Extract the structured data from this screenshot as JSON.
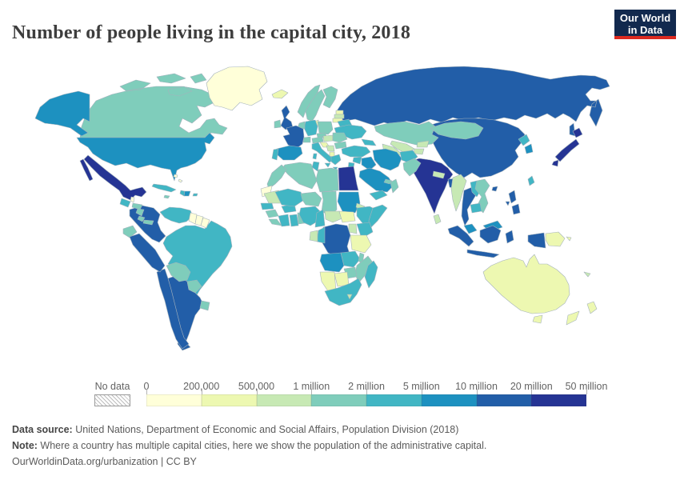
{
  "title": "Number of people living in the capital city, 2018",
  "logo": {
    "line1": "Our World",
    "line2": "in Data",
    "bg_color": "#12294e",
    "accent_color": "#dc2a20"
  },
  "legend": {
    "no_data_label": "No data",
    "tick_labels": [
      "0",
      "200,000",
      "500,000",
      "1 million",
      "2 million",
      "5 million",
      "10 million",
      "20 million",
      "50 million"
    ],
    "colors": [
      "#ffffd9",
      "#edf8b1",
      "#c7e9b4",
      "#7fcdbb",
      "#41b6c4",
      "#1d91c0",
      "#225ea8",
      "#253494"
    ]
  },
  "footer": {
    "source_label": "Data source:",
    "source_text": " United Nations, Department of Economic and Social Affairs, Population Division (2018)",
    "note_label": "Note:",
    "note_text": " Where a country has multiple capital cities, here we show the population of the administrative capital.",
    "license": "OurWorldinData.org/urbanization | CC BY"
  },
  "chart_data": {
    "type": "choropleth_map",
    "title": "Number of people living in the capital city, 2018",
    "year": 2018,
    "unit": "people in capital city",
    "legend_position": "bottom",
    "bins": [
      {
        "index": 0,
        "range": "0 - 200,000",
        "color": "#ffffd9"
      },
      {
        "index": 1,
        "range": "200,000 - 500,000",
        "color": "#edf8b1"
      },
      {
        "index": 2,
        "range": "500,000 - 1 million",
        "color": "#c7e9b4"
      },
      {
        "index": 3,
        "range": "1 million - 2 million",
        "color": "#7fcdbb"
      },
      {
        "index": 4,
        "range": "2 million - 5 million",
        "color": "#41b6c4"
      },
      {
        "index": 5,
        "range": "5 million - 10 million",
        "color": "#1d91c0"
      },
      {
        "index": 6,
        "range": "10 million - 20 million",
        "color": "#225ea8"
      },
      {
        "index": 7,
        "range": "20 million - 50 million",
        "color": "#253494"
      }
    ],
    "countries": [
      [
        "Russia",
        6
      ],
      [
        "Canada",
        3
      ],
      [
        "United States",
        5
      ],
      [
        "Greenland",
        0
      ],
      [
        "Brazil",
        4
      ],
      [
        "China",
        6
      ],
      [
        "Australia",
        1
      ],
      [
        "Kazakhstan",
        3
      ],
      [
        "Uzbekistan",
        2
      ],
      [
        "Turkmenistan",
        2
      ],
      [
        "Kyrgyzstan",
        2
      ],
      [
        "Tajikistan",
        2
      ],
      [
        "India",
        7
      ],
      [
        "Argentina",
        6
      ],
      [
        "Chile",
        6
      ],
      [
        "Mexico",
        7
      ],
      [
        "Iceland",
        1
      ],
      [
        "United Kingdom",
        6
      ],
      [
        "Ireland",
        3
      ],
      [
        "Norway",
        3
      ],
      [
        "Sweden",
        3
      ],
      [
        "Finland",
        3
      ],
      [
        "Denmark",
        1
      ],
      [
        "Estonia",
        1
      ],
      [
        "Latvia",
        2
      ],
      [
        "Lithuania",
        1
      ],
      [
        "Belarus",
        4
      ],
      [
        "Ukraine",
        4
      ],
      [
        "Poland",
        3
      ],
      [
        "Germany",
        4
      ],
      [
        "Netherlands",
        3
      ],
      [
        "France",
        6
      ],
      [
        "Spain",
        5
      ],
      [
        "Portugal",
        4
      ],
      [
        "Italy",
        4
      ],
      [
        "Switzerland",
        3
      ],
      [
        "Czechia",
        3
      ],
      [
        "Austria",
        3
      ],
      [
        "Hungary",
        2
      ],
      [
        "Croatia",
        1
      ],
      [
        "Serbia",
        2
      ],
      [
        "Albania",
        1
      ],
      [
        "Greece",
        4
      ],
      [
        "Romania",
        3
      ],
      [
        "Bulgaria",
        3
      ],
      [
        "Turkey",
        4
      ],
      [
        "Azerbaijan",
        4
      ],
      [
        "Syria",
        4
      ],
      [
        "Jordan",
        4
      ],
      [
        "Iraq",
        5
      ],
      [
        "Iran",
        5
      ],
      [
        "Afghanistan",
        4
      ],
      [
        "Pakistan",
        3
      ],
      [
        "Saudi Arabia",
        5
      ],
      [
        "Yemen",
        4
      ],
      [
        "Oman",
        3
      ],
      [
        "United Arab Emirates",
        3
      ],
      [
        "Egypt",
        7
      ],
      [
        "Libya",
        3
      ],
      [
        "Tunisia",
        4
      ],
      [
        "Algeria",
        3
      ],
      [
        "Morocco",
        3
      ],
      [
        "Western Sahara",
        0
      ],
      [
        "Mauritania",
        2
      ],
      [
        "Senegal",
        4
      ],
      [
        "Guinea",
        3
      ],
      [
        "Sierra Leone",
        3
      ],
      [
        "Ivory Coast",
        4
      ],
      [
        "Ghana",
        4
      ],
      [
        "Togo",
        3
      ],
      [
        "Burkina Faso",
        4
      ],
      [
        "Mali",
        4
      ],
      [
        "Niger",
        3
      ],
      [
        "Nigeria",
        4
      ],
      [
        "Chad",
        3
      ],
      [
        "Cameroon",
        4
      ],
      [
        "Central African Republic",
        2
      ],
      [
        "Sudan",
        5
      ],
      [
        "Eritrea",
        2
      ],
      [
        "South Sudan",
        1
      ],
      [
        "Ethiopia",
        4
      ],
      [
        "Somalia",
        4
      ],
      [
        "Kenya",
        4
      ],
      [
        "Uganda",
        2
      ],
      [
        "Tanzania",
        1
      ],
      [
        "Democratic Republic of Congo",
        6
      ],
      [
        "Congo",
        4
      ],
      [
        "Gabon",
        2
      ],
      [
        "Angola",
        5
      ],
      [
        "Zambia",
        4
      ],
      [
        "Malawi",
        3
      ],
      [
        "Mozambique",
        3
      ],
      [
        "Zimbabwe",
        3
      ],
      [
        "Botswana",
        1
      ],
      [
        "Namibia",
        1
      ],
      [
        "South Africa",
        4
      ],
      [
        "Lesotho",
        2
      ],
      [
        "Madagascar",
        4
      ],
      [
        "Mongolia",
        3
      ],
      [
        "Nepal",
        2
      ],
      [
        "Bangladesh",
        6
      ],
      [
        "Sri Lanka",
        2
      ],
      [
        "Myanmar",
        2
      ],
      [
        "Thailand",
        6
      ],
      [
        "Laos",
        4
      ],
      [
        "Vietnam",
        3
      ],
      [
        "Cambodia",
        4
      ],
      [
        "Malaysia",
        5
      ],
      [
        "North Korea",
        4
      ],
      [
        "South Korea",
        5
      ],
      [
        "Japan",
        7
      ],
      [
        "Taiwan",
        4
      ],
      [
        "Philippines",
        6
      ],
      [
        "Indonesia",
        6
      ],
      [
        "Papua New Guinea",
        1
      ],
      [
        "New Zealand",
        1
      ],
      [
        "New Caledonia",
        2
      ],
      [
        "Colombia",
        6
      ],
      [
        "Venezuela",
        4
      ],
      [
        "Guyana",
        0
      ],
      [
        "Suriname",
        0
      ],
      [
        "French Guiana",
        0
      ],
      [
        "Ecuador",
        3
      ],
      [
        "Peru",
        6
      ],
      [
        "Bolivia",
        3
      ],
      [
        "Paraguay",
        3
      ],
      [
        "Uruguay",
        3
      ],
      [
        "Guatemala",
        4
      ],
      [
        "Belize",
        0
      ],
      [
        "Honduras",
        3
      ],
      [
        "Nicaragua",
        3
      ],
      [
        "Costa Rica",
        3
      ],
      [
        "Panama",
        3
      ],
      [
        "Cuba",
        4
      ],
      [
        "Haiti",
        4
      ],
      [
        "Dominican Republic",
        5
      ],
      [
        "Jamaica",
        3
      ],
      [
        "Puerto Rico",
        4
      ],
      [
        "Bahamas",
        0
      ]
    ]
  }
}
